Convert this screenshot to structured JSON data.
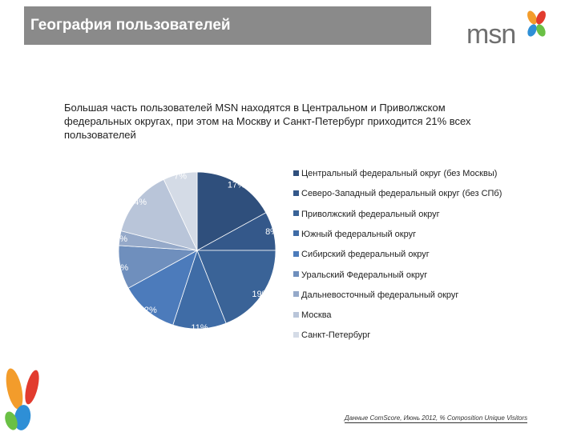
{
  "header": {
    "title": "География пользователей"
  },
  "logo": {
    "text": "msn"
  },
  "intro": {
    "text": "Большая часть пользователей MSN находятся в Центральном и Приволжском федеральных округах, при этом на Москву и Санкт-Петербург приходится 21% всех пользователей"
  },
  "chart_data": {
    "type": "pie",
    "title": "",
    "slices": [
      {
        "label": "Центральный федеральный округ (без Москвы)",
        "value": 17,
        "display": "17%",
        "color": "#2f4f7c"
      },
      {
        "label": "Северо-Западный федеральный округ (без СПб)",
        "value": 8,
        "display": "8%",
        "color": "#34588a"
      },
      {
        "label": "Приволжский федеральный округ",
        "value": 19,
        "display": "19%",
        "color": "#3a6397"
      },
      {
        "label": "Южный федеральный округ",
        "value": 11,
        "display": "11%",
        "color": "#3f6ca6"
      },
      {
        "label": "Сибирский федеральный округ",
        "value": 12,
        "display": "12%",
        "color": "#4c7bbb"
      },
      {
        "label": "Уральский Федеральный округ",
        "value": 9,
        "display": "9%",
        "color": "#6f8fbd"
      },
      {
        "label": "Дальневосточный федеральный округ",
        "value": 3,
        "display": "3%",
        "color": "#95a9c9"
      },
      {
        "label": "Москва",
        "value": 14,
        "display": "14%",
        "color": "#b9c5d9"
      },
      {
        "label": "Санкт-Петербург",
        "value": 7,
        "display": "7%",
        "color": "#d4dbe6"
      }
    ],
    "legend_position": "right"
  },
  "footer": {
    "source": "Данные ComScore, Июнь 2012, % Composition Unique Visitors"
  }
}
